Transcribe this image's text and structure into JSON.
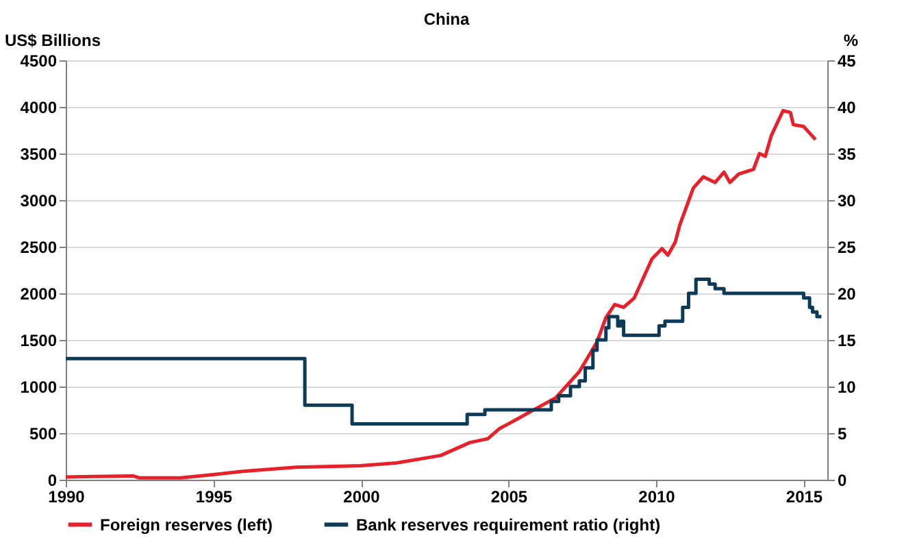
{
  "chart_data": {
    "type": "line",
    "title": "China",
    "ylabel": "US$ Billions",
    "y2label": "%",
    "xlim": [
      1990,
      2015.8
    ],
    "xticks": [
      1990,
      1995,
      2000,
      2005,
      2010,
      2015
    ],
    "ylim": [
      0,
      4500
    ],
    "yticks": [
      0,
      500,
      1000,
      1500,
      2000,
      2500,
      3000,
      3500,
      4000,
      4500
    ],
    "y2lim": [
      0,
      45
    ],
    "y2ticks": [
      0,
      5,
      10,
      15,
      20,
      25,
      30,
      35,
      40,
      45
    ],
    "grid": "y",
    "legend": "bottom",
    "series": [
      {
        "name": "Foreign reserves (left)",
        "color": "#e8202a",
        "type": "line",
        "x": [
          1990,
          1991,
          1992.3,
          1992.5,
          1993,
          1993.9,
          1995,
          1996,
          1997.8,
          2000,
          2001.2,
          2002.7,
          2003.7,
          2004.3,
          2004.7,
          2005,
          2005.8,
          2006.6,
          2007.4,
          2008,
          2008.3,
          2008.6,
          2008.9,
          2009.26,
          2009.86,
          2010.2,
          2010.4,
          2010.65,
          2010.8,
          2011.26,
          2011.6,
          2012,
          2012.3,
          2012.5,
          2012.8,
          2013.3,
          2013.5,
          2013.7,
          2013.9,
          2014.3,
          2014.55,
          2014.65,
          2015,
          2015.4
        ],
        "values": [
          30,
          35,
          40,
          20,
          21,
          20,
          55,
          90,
          135,
          150,
          180,
          260,
          400,
          440,
          550,
          600,
          740,
          880,
          1160,
          1480,
          1740,
          1880,
          1850,
          1950,
          2370,
          2480,
          2410,
          2550,
          2730,
          3130,
          3250,
          3190,
          3300,
          3190,
          3280,
          3330,
          3500,
          3470,
          3690,
          3960,
          3940,
          3810,
          3790,
          3650
        ]
      },
      {
        "name": "Bank reserves requirement ratio (right)",
        "color": "#0d3a56",
        "type": "step",
        "axis": "y2",
        "x": [
          1990,
          1998.1,
          1999.7,
          2003.6,
          2004.2,
          2006.45,
          2006.7,
          2007.1,
          2007.4,
          2007.6,
          2007.86,
          2008.0,
          2008.3,
          2008.4,
          2008.7,
          2008.8,
          2008.9,
          2010.1,
          2010.3,
          2010.7,
          2010.9,
          2011.1,
          2011.35,
          2011.8,
          2012.0,
          2012.1,
          2012.3,
          2015.0,
          2015.2,
          2015.3,
          2015.45,
          2015.6
        ],
        "values": [
          13,
          8,
          6,
          7,
          7.5,
          8.4,
          9,
          10,
          10.6,
          12,
          13.9,
          15,
          16.3,
          17.5,
          16.5,
          17,
          15.5,
          16.5,
          17,
          17,
          18.5,
          20,
          21.5,
          21,
          20.5,
          20.5,
          20,
          19.5,
          18.5,
          18,
          17.5,
          17.5
        ]
      }
    ]
  }
}
